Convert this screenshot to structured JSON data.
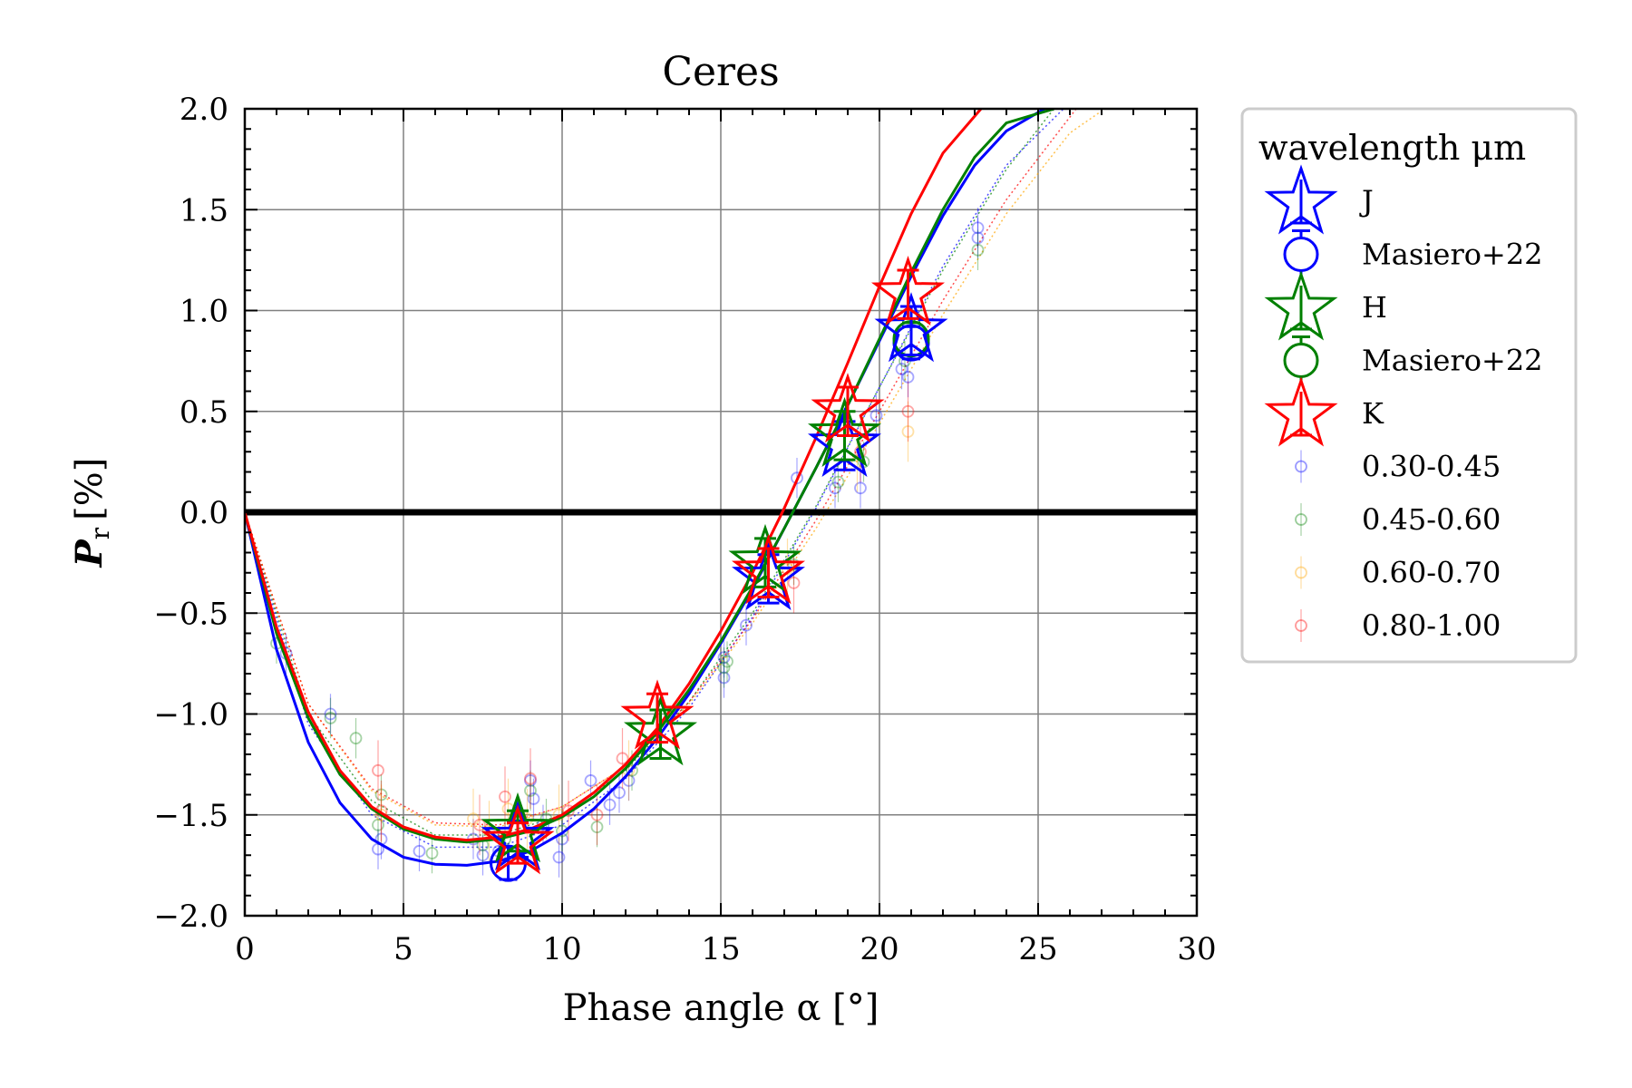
{
  "chart_data": {
    "type": "scatter",
    "title": "Ceres",
    "xlabel": "Phase angle α [°]",
    "ylabel_main": "P",
    "ylabel_sub": "r",
    "ylabel_unit": "[%]",
    "xlim": [
      0,
      30
    ],
    "ylim": [
      -2.0,
      2.0
    ],
    "xticks": [
      0,
      5,
      10,
      15,
      20,
      25,
      30
    ],
    "xtick_labels": [
      "0",
      "5",
      "10",
      "15",
      "20",
      "25",
      "30"
    ],
    "yticks": [
      -2.0,
      -1.5,
      -1.0,
      -0.5,
      0.0,
      0.5,
      1.0,
      1.5,
      2.0
    ],
    "ytick_labels": [
      "−2.0",
      "−1.5",
      "−1.0",
      "−0.5",
      "0.0",
      "0.5",
      "1.0",
      "1.5",
      "2.0"
    ],
    "grid": true,
    "legend_position": "outside-right",
    "legend_title": "wavelength μm",
    "colors": {
      "J": "#0000ff",
      "H": "#008000",
      "K": "#ff0000",
      "b1": "#0000ff",
      "b2": "#008000",
      "b3": "#ffa500",
      "b4": "#ff0000"
    },
    "star_series": [
      {
        "name": "J",
        "color": "#0000ff",
        "points": [
          [
            8.6,
            -1.62
          ],
          [
            16.5,
            -0.33
          ],
          [
            18.9,
            0.33
          ],
          [
            21.0,
            0.9
          ]
        ],
        "yerr": [
          0.09,
          0.12,
          0.12,
          0.12
        ]
      },
      {
        "name": "H",
        "color": "#008000",
        "points": [
          [
            8.6,
            -1.58
          ],
          [
            16.4,
            -0.25
          ],
          [
            18.9,
            0.38
          ],
          [
            13.1,
            -1.1
          ]
        ],
        "yerr": [
          0.1,
          0.12,
          0.12,
          0.12
        ]
      },
      {
        "name": "K",
        "color": "#ff0000",
        "points": [
          [
            8.6,
            -1.64
          ],
          [
            16.5,
            -0.3
          ],
          [
            19.0,
            0.5
          ],
          [
            13.0,
            -1.02
          ],
          [
            20.9,
            1.08
          ]
        ],
        "yerr": [
          0.1,
          0.12,
          0.12,
          0.12,
          0.12
        ]
      }
    ],
    "masiero_series": [
      {
        "name": "Masiero+22",
        "color": "#0000ff",
        "points": [
          [
            8.3,
            -1.74
          ],
          [
            21.0,
            0.84
          ]
        ],
        "yerr": [
          0.08,
          0.08
        ]
      },
      {
        "name": "Masiero+22",
        "color": "#008000",
        "points": [
          [
            21.0,
            0.86
          ]
        ],
        "yerr": [
          0.08
        ]
      }
    ],
    "fit_curves": [
      {
        "name": "J fit",
        "color": "#0000ff",
        "x": [
          0,
          1,
          2,
          3,
          4,
          5,
          6,
          7,
          8,
          9,
          10,
          11,
          12,
          13,
          14,
          15,
          16,
          17,
          18,
          19,
          20,
          21,
          22,
          23,
          24,
          25.2
        ],
        "y": [
          0,
          -0.68,
          -1.14,
          -1.44,
          -1.62,
          -1.71,
          -1.745,
          -1.75,
          -1.73,
          -1.68,
          -1.59,
          -1.47,
          -1.31,
          -1.12,
          -0.9,
          -0.65,
          -0.38,
          -0.08,
          0.22,
          0.53,
          0.85,
          1.17,
          1.47,
          1.72,
          1.89,
          2.0
        ]
      },
      {
        "name": "H fit",
        "color": "#008000",
        "x": [
          0,
          1,
          2,
          3,
          4,
          5,
          6,
          7,
          8,
          9,
          10,
          11,
          12,
          13,
          14,
          15,
          16,
          17,
          18,
          19,
          20,
          21,
          22,
          23,
          24,
          25.5
        ],
        "y": [
          0,
          -0.6,
          -1.02,
          -1.3,
          -1.47,
          -1.57,
          -1.62,
          -1.635,
          -1.62,
          -1.58,
          -1.51,
          -1.41,
          -1.27,
          -1.09,
          -0.88,
          -0.64,
          -0.37,
          -0.08,
          0.22,
          0.53,
          0.86,
          1.19,
          1.5,
          1.76,
          1.93,
          2.0
        ]
      },
      {
        "name": "K fit",
        "color": "#ff0000",
        "x": [
          0,
          1,
          2,
          3,
          4,
          5,
          6,
          7,
          8,
          9,
          10,
          11,
          12,
          13,
          14,
          15,
          16,
          17,
          18,
          19,
          20,
          21,
          22,
          23.2
        ],
        "y": [
          0,
          -0.57,
          -0.99,
          -1.28,
          -1.46,
          -1.56,
          -1.61,
          -1.625,
          -1.61,
          -1.57,
          -1.5,
          -1.39,
          -1.25,
          -1.07,
          -0.85,
          -0.59,
          -0.3,
          0.02,
          0.37,
          0.74,
          1.12,
          1.48,
          1.78,
          2.0
        ]
      }
    ],
    "band_fits": [
      {
        "name": "0.30-0.45 fit",
        "color": "#0000ff",
        "x": [
          0,
          2,
          4,
          6,
          8,
          10,
          12,
          14,
          16,
          18,
          20,
          22,
          24,
          25.8
        ],
        "y": [
          0,
          -1.05,
          -1.5,
          -1.66,
          -1.66,
          -1.55,
          -1.32,
          -0.97,
          -0.52,
          0.02,
          0.62,
          1.22,
          1.72,
          2.0
        ]
      },
      {
        "name": "0.45-0.60 fit",
        "color": "#008000",
        "x": [
          0,
          2,
          4,
          6,
          8,
          10,
          12,
          14,
          16,
          18,
          20,
          22,
          24,
          25.5
        ],
        "y": [
          0,
          -1.0,
          -1.43,
          -1.6,
          -1.6,
          -1.5,
          -1.28,
          -0.94,
          -0.5,
          0.03,
          0.62,
          1.2,
          1.7,
          2.0
        ]
      },
      {
        "name": "0.60-0.70 fit",
        "color": "#ffa500",
        "x": [
          0,
          2,
          4,
          6,
          8,
          10,
          12,
          14,
          16,
          18,
          20,
          22,
          24,
          26,
          27.1
        ],
        "y": [
          0,
          -0.95,
          -1.38,
          -1.55,
          -1.56,
          -1.46,
          -1.26,
          -0.95,
          -0.55,
          -0.08,
          0.44,
          0.98,
          1.48,
          1.88,
          2.0
        ]
      },
      {
        "name": "0.80-1.00 fit",
        "color": "#ff0000",
        "x": [
          0,
          2,
          4,
          6,
          8,
          10,
          12,
          14,
          16,
          18,
          20,
          22,
          24,
          26.2
        ],
        "y": [
          0,
          -0.95,
          -1.37,
          -1.54,
          -1.55,
          -1.46,
          -1.26,
          -0.94,
          -0.53,
          -0.04,
          0.5,
          1.05,
          1.55,
          2.0
        ]
      }
    ],
    "band_points": [
      {
        "name": "0.30-0.45",
        "color": "#0000ff",
        "points": [
          [
            1.3,
            -0.7
          ],
          [
            2.7,
            -1.0
          ],
          [
            4.2,
            -1.67
          ],
          [
            4.3,
            -1.62
          ],
          [
            5.5,
            -1.68
          ],
          [
            7.2,
            -1.62
          ],
          [
            7.5,
            -1.7
          ],
          [
            8.0,
            -1.68
          ],
          [
            9.0,
            -1.33
          ],
          [
            9.1,
            -1.42
          ],
          [
            9.4,
            -1.55
          ],
          [
            9.9,
            -1.71
          ],
          [
            10.0,
            -1.62
          ],
          [
            10.9,
            -1.33
          ],
          [
            11.5,
            -1.45
          ],
          [
            11.8,
            -1.39
          ],
          [
            12.1,
            -1.33
          ],
          [
            15.1,
            -0.82
          ],
          [
            15.1,
            -0.72
          ],
          [
            15.8,
            -0.56
          ],
          [
            17.4,
            0.17
          ],
          [
            18.6,
            0.12
          ],
          [
            19.4,
            0.12
          ],
          [
            19.9,
            0.48
          ],
          [
            20.7,
            0.71
          ],
          [
            20.9,
            0.67
          ],
          [
            23.1,
            1.36
          ],
          [
            23.1,
            1.41
          ]
        ],
        "yerr": 0.1
      },
      {
        "name": "0.45-0.60",
        "color": "#008000",
        "points": [
          [
            1.0,
            -0.65
          ],
          [
            2.7,
            -1.02
          ],
          [
            3.5,
            -1.12
          ],
          [
            4.2,
            -1.55
          ],
          [
            4.3,
            -1.4
          ],
          [
            5.9,
            -1.69
          ],
          [
            7.5,
            -1.65
          ],
          [
            8.2,
            -1.62
          ],
          [
            9.0,
            -1.38
          ],
          [
            9.5,
            -1.52
          ],
          [
            10.0,
            -1.58
          ],
          [
            11.1,
            -1.56
          ],
          [
            12.2,
            -1.28
          ],
          [
            15.1,
            -0.77
          ],
          [
            15.2,
            -0.74
          ],
          [
            17.3,
            -0.26
          ],
          [
            18.7,
            0.15
          ],
          [
            19.5,
            0.25
          ],
          [
            20.8,
            0.75
          ],
          [
            23.1,
            1.3
          ]
        ],
        "yerr": 0.1
      },
      {
        "name": "0.60-0.70",
        "color": "#ffa500",
        "points": [
          [
            4.3,
            -1.5
          ],
          [
            7.2,
            -1.52
          ],
          [
            7.7,
            -1.58
          ],
          [
            8.3,
            -1.47
          ],
          [
            8.9,
            -1.52
          ],
          [
            9.9,
            -1.5
          ],
          [
            12.1,
            -1.28
          ],
          [
            17.1,
            -0.28
          ],
          [
            19.3,
            0.25
          ],
          [
            20.9,
            0.4
          ]
        ],
        "yerr": 0.15
      },
      {
        "name": "0.80-1.00",
        "color": "#ff0000",
        "points": [
          [
            4.2,
            -1.28
          ],
          [
            4.3,
            -1.48
          ],
          [
            7.4,
            -1.55
          ],
          [
            8.2,
            -1.41
          ],
          [
            9.0,
            -1.32
          ],
          [
            10.2,
            -1.48
          ],
          [
            11.1,
            -1.5
          ],
          [
            11.9,
            -1.22
          ],
          [
            17.3,
            -0.35
          ],
          [
            19.4,
            0.3
          ],
          [
            20.9,
            0.5
          ]
        ],
        "yerr": 0.15
      }
    ],
    "reference_line": {
      "y": 0.0,
      "color": "#000000"
    },
    "legend_items": [
      {
        "label": "J",
        "marker": "star",
        "color": "#0000ff"
      },
      {
        "label": "Masiero+22",
        "marker": "circle-errorbar",
        "color": "#0000ff"
      },
      {
        "label": "H",
        "marker": "star",
        "color": "#008000"
      },
      {
        "label": "Masiero+22",
        "marker": "circle-errorbar",
        "color": "#008000"
      },
      {
        "label": "K",
        "marker": "star",
        "color": "#ff0000"
      },
      {
        "label": "0.30-0.45",
        "marker": "small-circle",
        "color": "#0000ff"
      },
      {
        "label": "0.45-0.60",
        "marker": "small-circle",
        "color": "#008000"
      },
      {
        "label": "0.60-0.70",
        "marker": "small-circle",
        "color": "#ffa500"
      },
      {
        "label": "0.80-1.00",
        "marker": "small-circle",
        "color": "#ff0000"
      }
    ]
  }
}
